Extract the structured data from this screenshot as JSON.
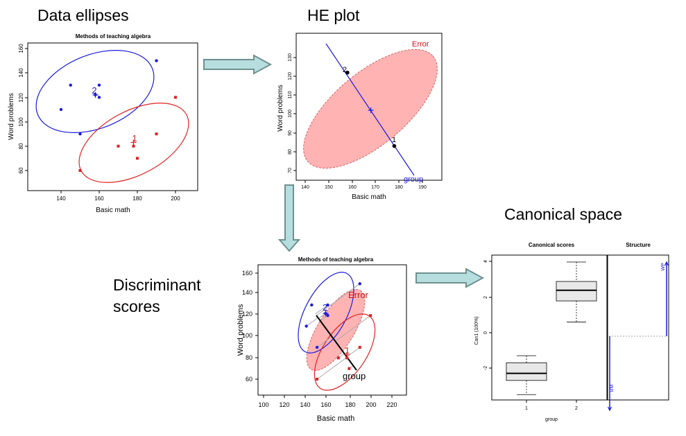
{
  "captions": {
    "data_ellipses": "Data ellipses",
    "he_plot": "HE plot",
    "canonical_space": "Canonical space",
    "discriminant_line1": "Discriminant",
    "discriminant_line2": "scores"
  },
  "colors": {
    "group1": "#e02020",
    "group2": "#1a1ae0",
    "error_fill": "#ffb3b3",
    "error_label": "#d01010",
    "arrow_fill": "#b7dede",
    "arrow_stroke": "#6e8f8f"
  },
  "chart_data": [
    {
      "id": "data_ellipses",
      "type": "scatter",
      "title": "Methods of teaching algebra",
      "xlabel": "Basic math",
      "ylabel": "Word problems",
      "xticks": [
        "140",
        "160",
        "180",
        "200"
      ],
      "yticks": [
        "60",
        "80",
        "100",
        "120",
        "140",
        "160"
      ],
      "series": [
        {
          "name": "1",
          "points": [
            [
              150,
              60
            ],
            [
              170,
              80
            ],
            [
              178,
              80
            ],
            [
              180,
              70
            ],
            [
              190,
              90
            ],
            [
              200,
              120
            ]
          ],
          "mean": [
            178,
            83
          ]
        },
        {
          "name": "2",
          "points": [
            [
              140,
              110
            ],
            [
              145,
              130
            ],
            [
              150,
              90
            ],
            [
              158,
              122
            ],
            [
              160,
              120
            ],
            [
              160,
              130
            ],
            [
              190,
              150
            ]
          ],
          "mean": [
            158,
            122
          ]
        }
      ]
    },
    {
      "id": "he_plot",
      "type": "scatter",
      "xlabel": "Basic math",
      "ylabel": "Word problems",
      "xticks": [
        "140",
        "150",
        "160",
        "170",
        "180",
        "190"
      ],
      "yticks": [
        "70",
        "80",
        "90",
        "100",
        "110",
        "120",
        "130"
      ],
      "labels": {
        "error": "Error",
        "group": "group",
        "g1": "1",
        "g2": "2"
      },
      "means": [
        {
          "name": "1",
          "x": 178,
          "y": 83
        },
        {
          "name": "2",
          "x": 158,
          "y": 122
        }
      ],
      "grand_mean": [
        168,
        102
      ]
    },
    {
      "id": "discriminant_scores",
      "type": "scatter",
      "title": "Methods of teaching algebra",
      "xlabel": "Basic math",
      "ylabel": "Word problems",
      "xticks": [
        "100",
        "120",
        "140",
        "160",
        "180",
        "200",
        "220"
      ],
      "yticks": [
        "60",
        "80",
        "100",
        "120",
        "140",
        "160"
      ],
      "labels": {
        "error": "Error",
        "group": "group",
        "g1": "1",
        "g2": "2"
      }
    },
    {
      "id": "canonical_scores",
      "type": "box",
      "title": "Canonical scores",
      "xlabel": "group",
      "ylabel": "Can1 (100%)",
      "categories": [
        "1",
        "2"
      ],
      "yticks": [
        "-2",
        "0",
        "2",
        "4"
      ],
      "boxes": [
        {
          "name": "1",
          "min": -3.5,
          "q1": -2.7,
          "median": -2.3,
          "q3": -1.7,
          "max": -1.3
        },
        {
          "name": "2",
          "min": 0.6,
          "q1": 1.8,
          "median": 2.4,
          "q3": 2.9,
          "max": 4.0
        }
      ]
    },
    {
      "id": "structure",
      "type": "vector",
      "title": "Structure",
      "vectors": [
        {
          "name": "WP",
          "value": 1.0
        },
        {
          "name": "BM",
          "value": -1.0
        }
      ]
    }
  ]
}
